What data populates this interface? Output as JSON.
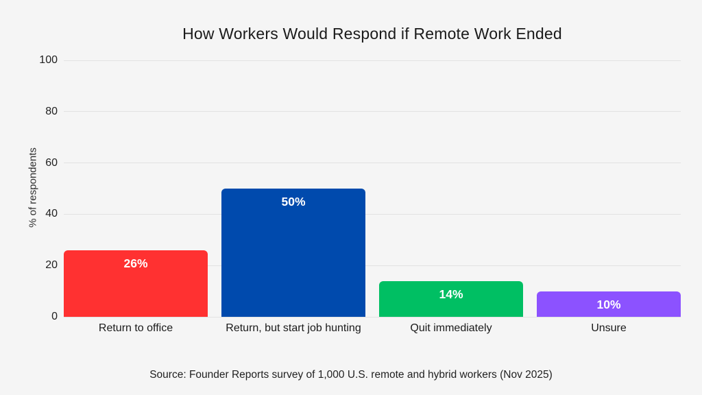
{
  "page": {
    "background_color": "#f5f5f5",
    "gridline_color": "#e2e2e2",
    "value_label_color": "#ffffff"
  },
  "chart_data": {
    "type": "bar",
    "title": "How Workers Would Respond if Remote Work Ended",
    "xlabel": "",
    "ylabel": "% of respondents",
    "ylim": [
      0,
      100
    ],
    "yticks": [
      0,
      20,
      40,
      60,
      80,
      100
    ],
    "grid": true,
    "legend": false,
    "categories": [
      "Return to office",
      "Return, but start job hunting",
      "Quit immediately",
      "Unsure"
    ],
    "values": [
      26,
      50,
      14,
      10
    ],
    "value_labels": [
      "26%",
      "50%",
      "14%",
      "10%"
    ],
    "bar_colors": [
      "#FF3131",
      "#004AAD",
      "#00BF63",
      "#8C52FF"
    ],
    "source": "Source: Founder Reports survey of 1,000 U.S. remote and hybrid workers (Nov 2025)"
  }
}
